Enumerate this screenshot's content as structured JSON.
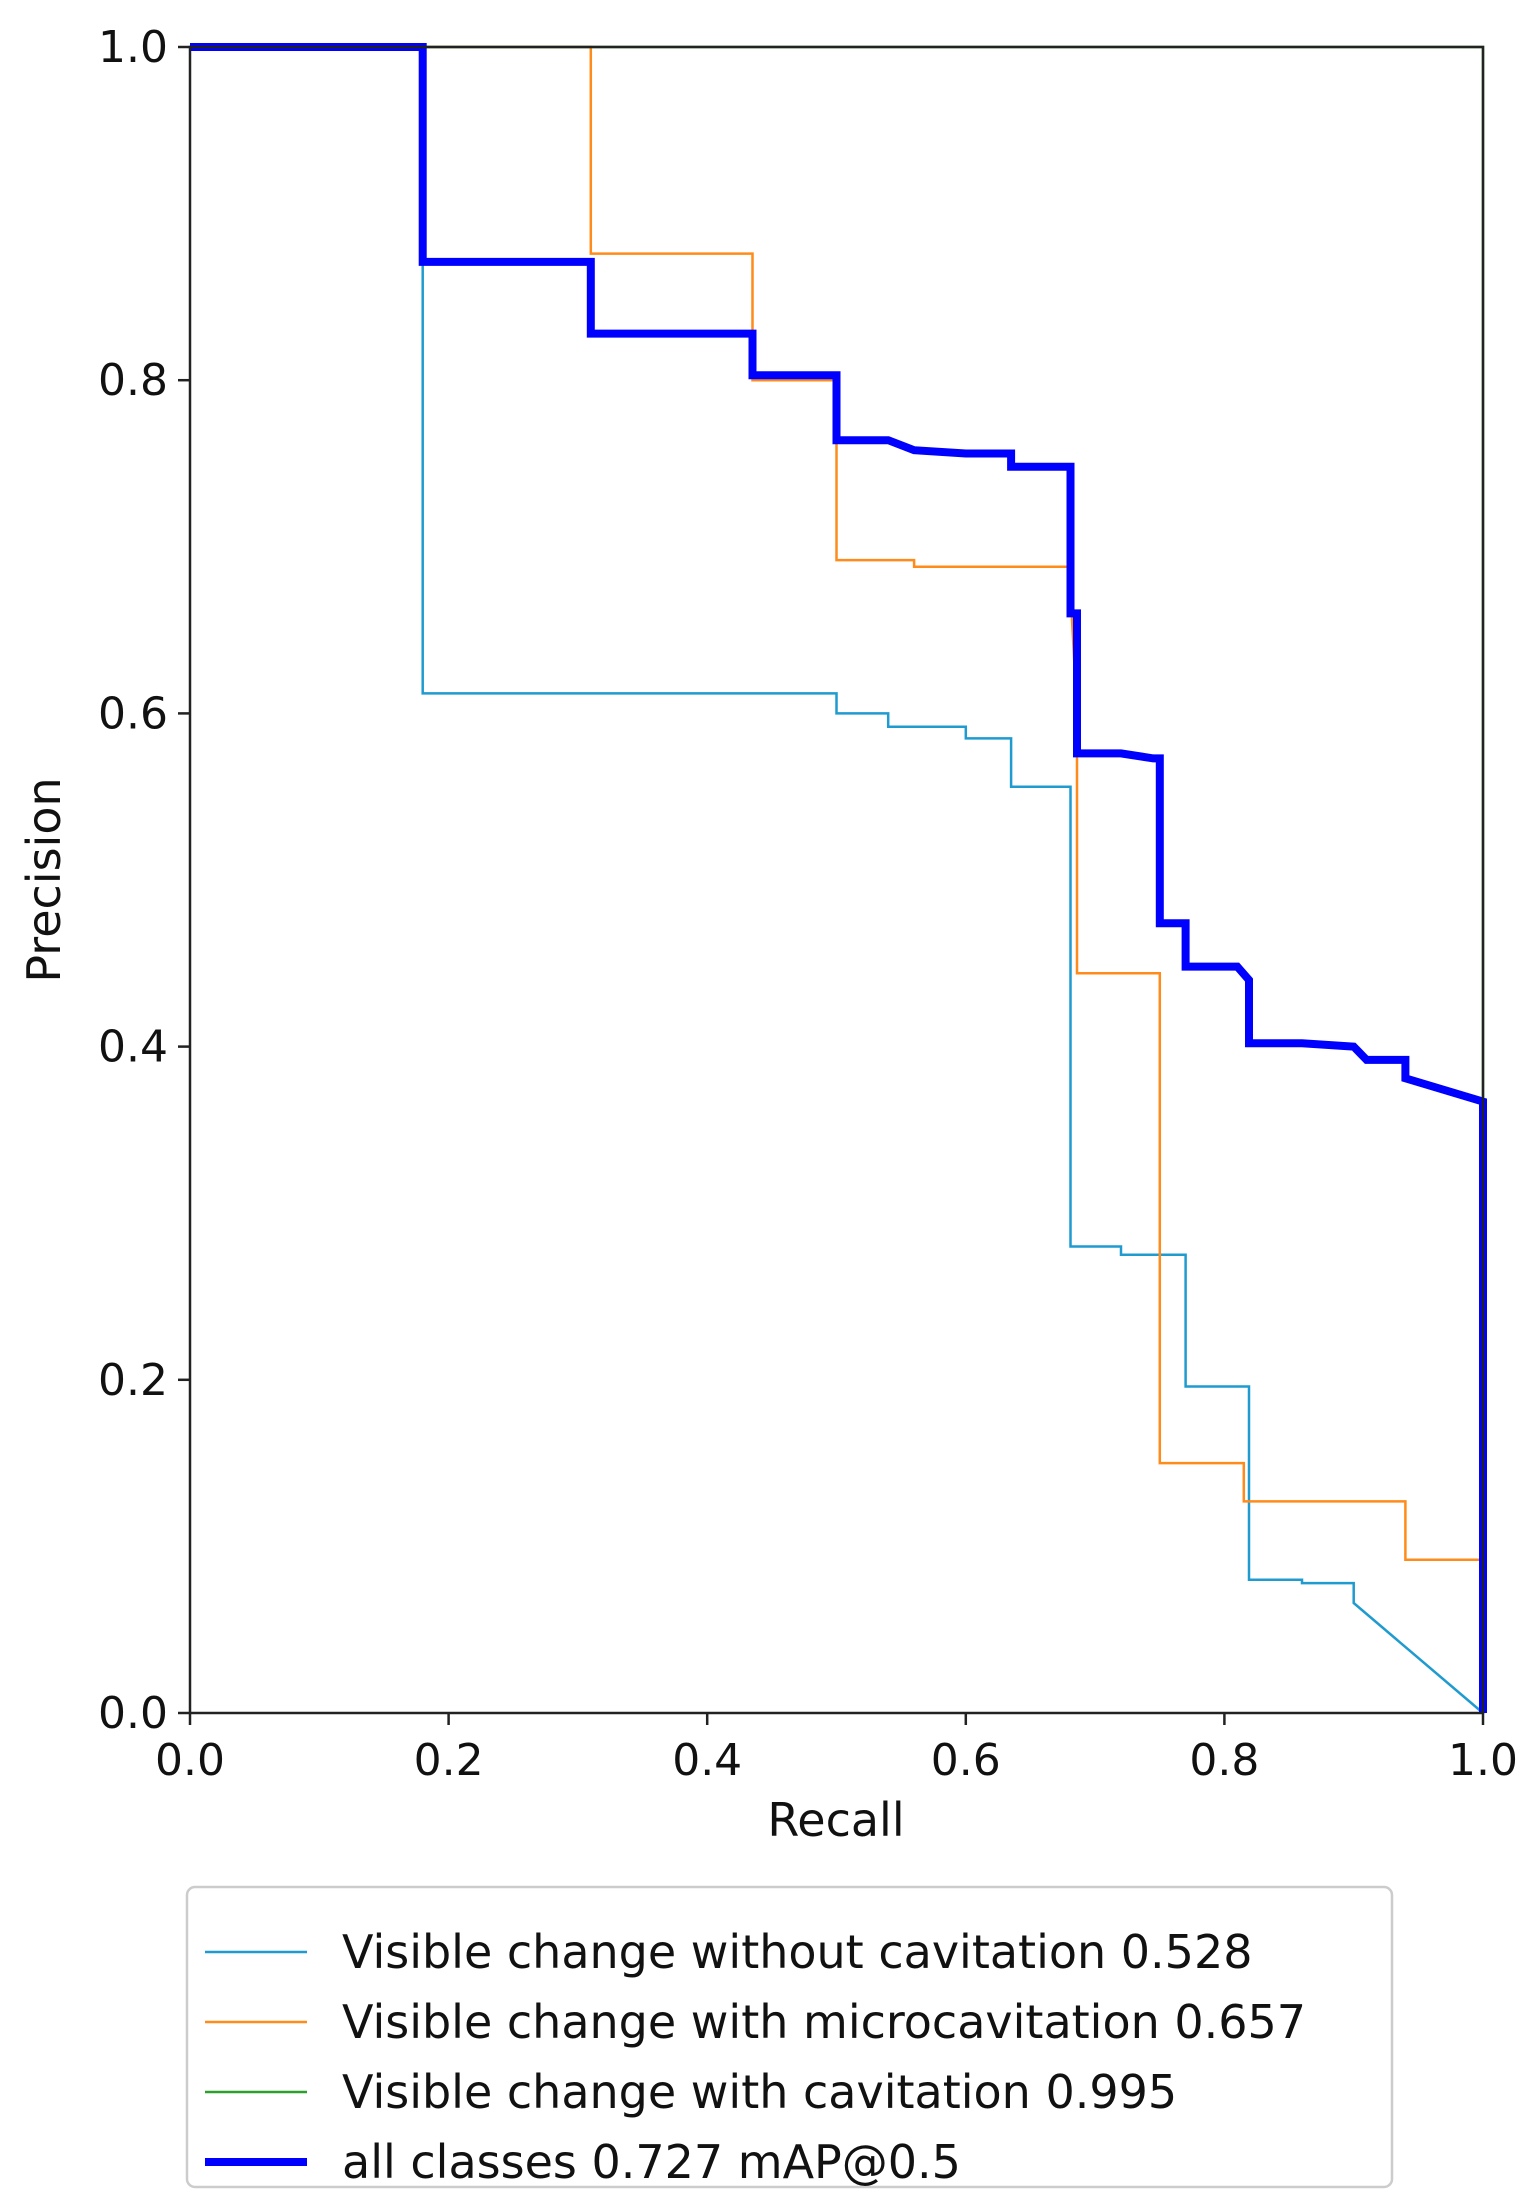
{
  "chart_data": {
    "type": "line",
    "title": "",
    "xlabel": "Recall",
    "ylabel": "Precision",
    "xlim": [
      0,
      1
    ],
    "ylim": [
      0,
      1
    ],
    "xticks": [
      "0.0",
      "0.2",
      "0.4",
      "0.6",
      "0.8",
      "1.0"
    ],
    "yticks": [
      "0.0",
      "0.2",
      "0.4",
      "0.6",
      "0.8",
      "1.0"
    ],
    "grid": false,
    "legend_position": "below",
    "series": [
      {
        "name": "Visible change without cavitation 0.528",
        "color": "#1f9bd0",
        "width": 2.5,
        "points": [
          [
            0,
            1.0
          ],
          [
            0.18,
            1.0
          ],
          [
            0.18,
            0.612
          ],
          [
            0.5,
            0.612
          ],
          [
            0.5,
            0.6
          ],
          [
            0.54,
            0.6
          ],
          [
            0.54,
            0.592
          ],
          [
            0.6,
            0.592
          ],
          [
            0.6,
            0.585
          ],
          [
            0.635,
            0.585
          ],
          [
            0.635,
            0.556
          ],
          [
            0.681,
            0.556
          ],
          [
            0.681,
            0.28
          ],
          [
            0.72,
            0.28
          ],
          [
            0.72,
            0.275
          ],
          [
            0.77,
            0.275
          ],
          [
            0.77,
            0.196
          ],
          [
            0.819,
            0.196
          ],
          [
            0.819,
            0.08
          ],
          [
            0.86,
            0.08
          ],
          [
            0.86,
            0.078
          ],
          [
            0.9,
            0.078
          ],
          [
            0.9,
            0.066
          ],
          [
            1.0,
            0.0
          ]
        ]
      },
      {
        "name": "Visible change with microcavitation 0.657",
        "color": "#ff8c1a",
        "width": 2.5,
        "points": [
          [
            0,
            1.0
          ],
          [
            0.31,
            1.0
          ],
          [
            0.31,
            0.876
          ],
          [
            0.435,
            0.876
          ],
          [
            0.435,
            0.8
          ],
          [
            0.5,
            0.8
          ],
          [
            0.5,
            0.692
          ],
          [
            0.56,
            0.692
          ],
          [
            0.56,
            0.688
          ],
          [
            0.68,
            0.688
          ],
          [
            0.686,
            0.6
          ],
          [
            0.686,
            0.444
          ],
          [
            0.75,
            0.444
          ],
          [
            0.75,
            0.15
          ],
          [
            0.815,
            0.15
          ],
          [
            0.815,
            0.127
          ],
          [
            0.94,
            0.127
          ],
          [
            0.94,
            0.092
          ],
          [
            1.0,
            0.092
          ],
          [
            1.0,
            0.0
          ]
        ]
      },
      {
        "name": "Visible change with cavitation 0.995",
        "color": "#2ca02c",
        "width": 2.5,
        "points": [
          [
            0,
            1.0
          ],
          [
            1.0,
            1.0
          ],
          [
            1.0,
            0.0
          ]
        ]
      },
      {
        "name": "all classes 0.727 mAP@0.5",
        "color": "#0000ff",
        "width": 8,
        "points": [
          [
            0,
            1.0
          ],
          [
            0.18,
            1.0
          ],
          [
            0.18,
            0.871
          ],
          [
            0.31,
            0.871
          ],
          [
            0.31,
            0.828
          ],
          [
            0.435,
            0.828
          ],
          [
            0.435,
            0.803
          ],
          [
            0.5,
            0.803
          ],
          [
            0.5,
            0.764
          ],
          [
            0.54,
            0.764
          ],
          [
            0.56,
            0.758
          ],
          [
            0.6,
            0.756
          ],
          [
            0.635,
            0.756
          ],
          [
            0.635,
            0.748
          ],
          [
            0.681,
            0.748
          ],
          [
            0.681,
            0.66
          ],
          [
            0.686,
            0.66
          ],
          [
            0.686,
            0.576
          ],
          [
            0.72,
            0.576
          ],
          [
            0.745,
            0.573
          ],
          [
            0.75,
            0.573
          ],
          [
            0.75,
            0.474
          ],
          [
            0.77,
            0.474
          ],
          [
            0.77,
            0.448
          ],
          [
            0.81,
            0.448
          ],
          [
            0.819,
            0.44
          ],
          [
            0.819,
            0.402
          ],
          [
            0.86,
            0.402
          ],
          [
            0.9,
            0.4
          ],
          [
            0.91,
            0.392
          ],
          [
            0.94,
            0.392
          ],
          [
            0.94,
            0.381
          ],
          [
            1.0,
            0.367
          ],
          [
            1.0,
            0.0
          ]
        ]
      }
    ]
  }
}
